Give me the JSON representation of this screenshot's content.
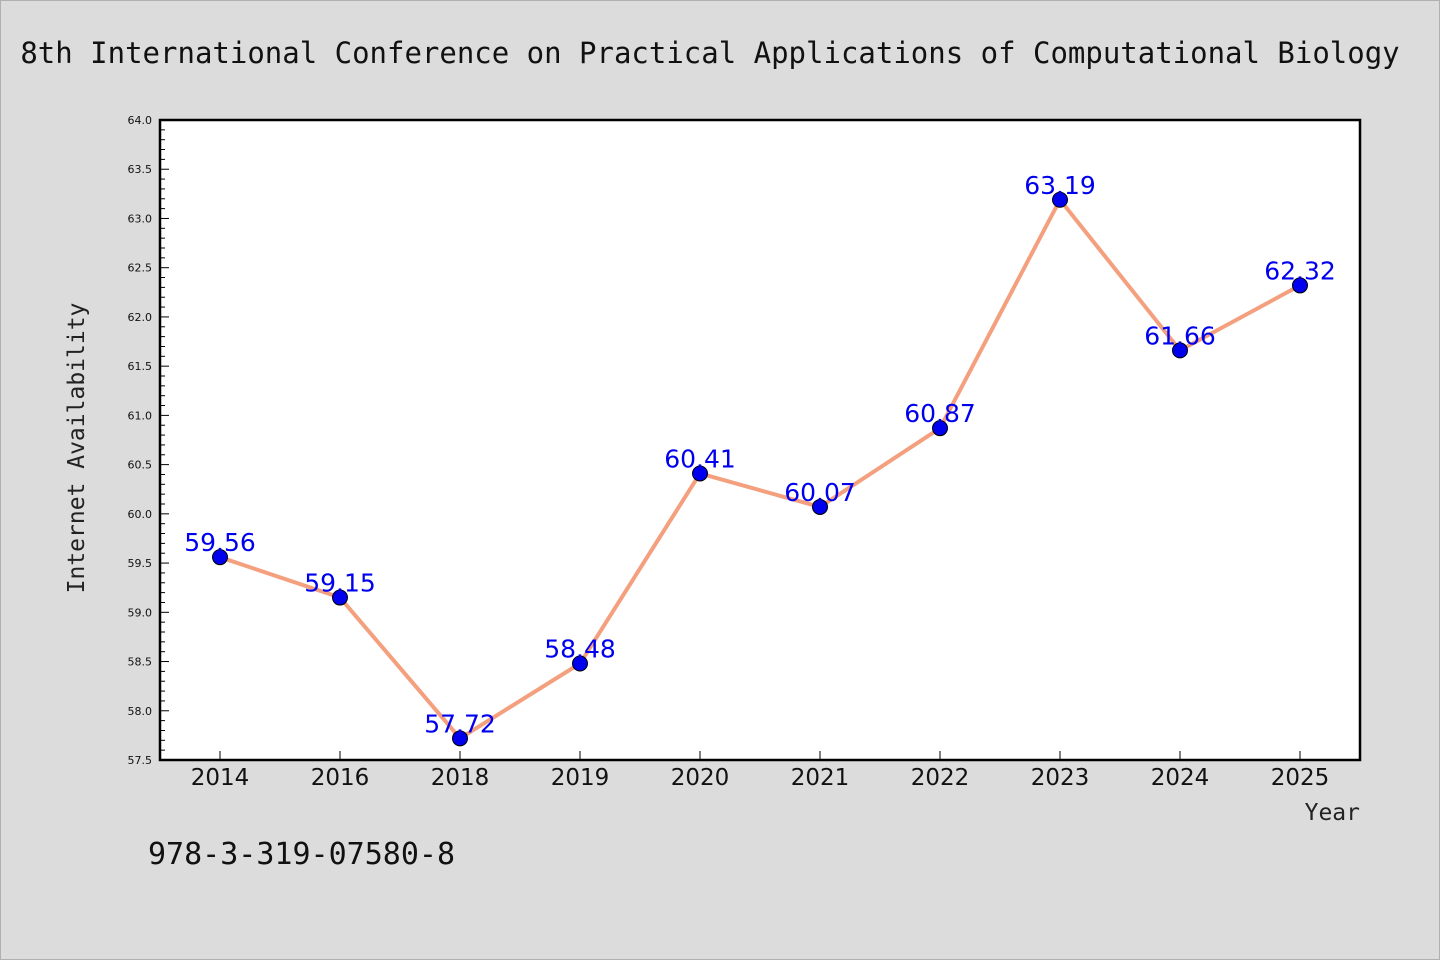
{
  "page": {
    "isbn": "978-3-319-07580-8"
  },
  "chart_data": {
    "type": "line",
    "title": "8th International Conference on Practical Applications of Computational Biology",
    "xlabel": "Year",
    "ylabel": "Internet Availability",
    "categories": [
      "2014",
      "2016",
      "2018",
      "2019",
      "2020",
      "2021",
      "2022",
      "2023",
      "2024",
      "2025"
    ],
    "series": [
      {
        "values": [
          59.56,
          59.15,
          57.72,
          58.48,
          60.41,
          60.07,
          60.87,
          63.19,
          61.66,
          62.32
        ],
        "line_color": "#f4a07e",
        "marker_color": "#0000ee"
      }
    ],
    "data_labels": [
      "59.56",
      "59.15",
      "57.72",
      "58.48",
      "60.41",
      "60.07",
      "60.87",
      "63.19",
      "61.66",
      "62.32"
    ],
    "ylim": [
      57.5,
      64.0
    ],
    "yticks": [
      "57.5",
      "58.0",
      "58.5",
      "59.0",
      "59.5",
      "60.0",
      "60.5",
      "61.0",
      "61.5",
      "62.0",
      "62.5",
      "63.0",
      "63.5",
      "64.0"
    ],
    "grid": false,
    "legend": "none"
  }
}
